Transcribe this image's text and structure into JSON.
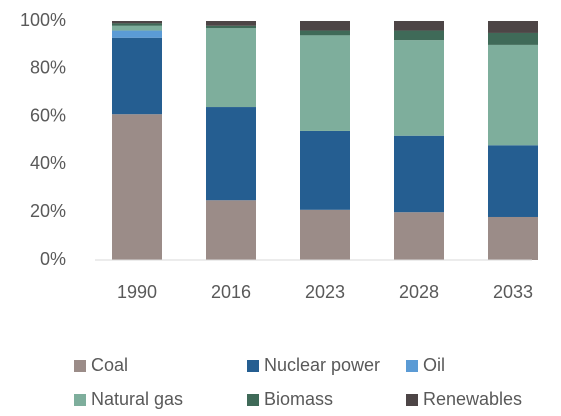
{
  "chart_data": {
    "type": "stacked_bar",
    "categories": [
      "1990",
      "2016",
      "2023",
      "2028",
      "2033"
    ],
    "series": [
      {
        "name": "Coal",
        "color": "#9b8c88",
        "values": [
          61,
          25,
          21,
          20,
          18
        ]
      },
      {
        "name": "Nuclear power",
        "color": "#255e91",
        "values": [
          32,
          39,
          33,
          32,
          30
        ]
      },
      {
        "name": "Oil",
        "color": "#5b9bd5",
        "values": [
          3,
          0,
          0,
          0,
          0
        ]
      },
      {
        "name": "Natural gas",
        "color": "#7eae9c",
        "values": [
          2,
          33,
          40,
          40,
          42
        ]
      },
      {
        "name": "Biomass",
        "color": "#3f6a58",
        "values": [
          1,
          1,
          2,
          4,
          5
        ]
      },
      {
        "name": "Renewables",
        "color": "#4d4546",
        "values": [
          1,
          2,
          4,
          4,
          5
        ]
      }
    ],
    "ylim": [
      0,
      100
    ],
    "yticks": [
      {
        "value": 0,
        "label": "0%"
      },
      {
        "value": 20,
        "label": "20%"
      },
      {
        "value": 40,
        "label": "40%"
      },
      {
        "value": 60,
        "label": "60%"
      },
      {
        "value": 80,
        "label": "80%"
      },
      {
        "value": 100,
        "label": "100%"
      }
    ],
    "grid": false,
    "legend": "bottom"
  }
}
